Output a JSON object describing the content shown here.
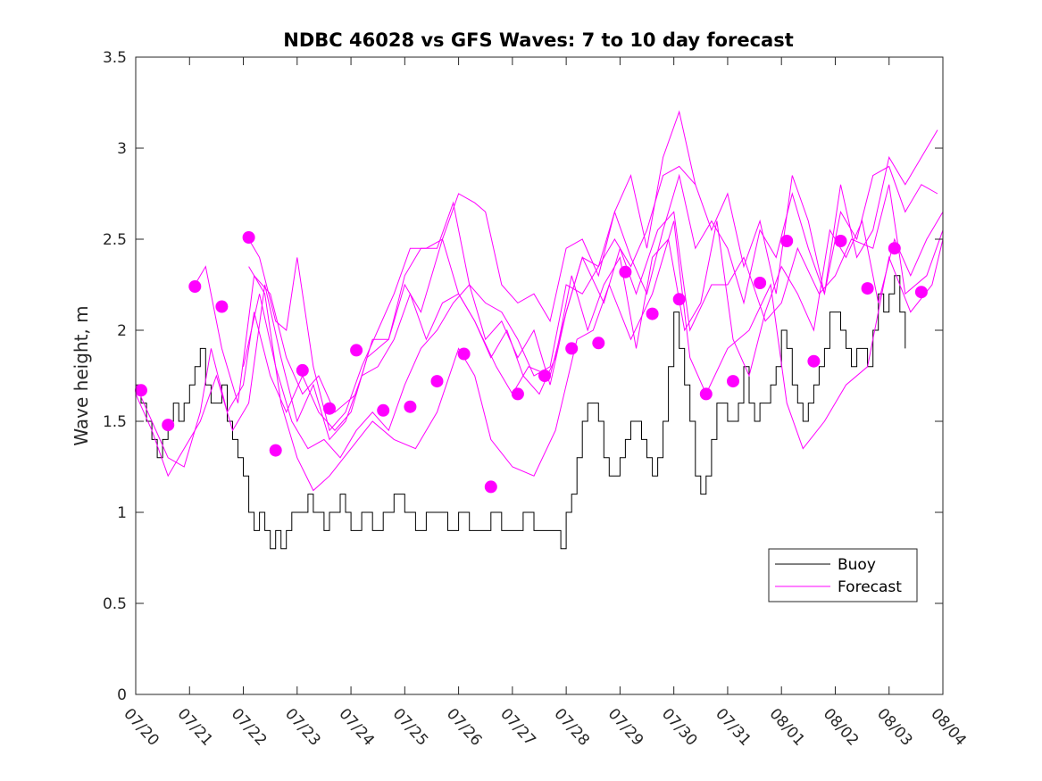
{
  "chart_data": {
    "type": "line",
    "title": "NDBC 46028 vs GFS Waves: 7 to 10 day forecast",
    "xlabel": "",
    "ylabel": "Wave height, m",
    "xlim": [
      0,
      15
    ],
    "ylim": [
      0,
      3.5
    ],
    "x_tick_values": [
      0,
      1,
      2,
      3,
      4,
      5,
      6,
      7,
      8,
      9,
      10,
      11,
      12,
      13,
      14,
      15
    ],
    "x_tick_labels": [
      "07/20",
      "07/21",
      "07/22",
      "07/23",
      "07/24",
      "07/25",
      "07/26",
      "07/27",
      "07/28",
      "07/29",
      "07/30",
      "07/31",
      "08/01",
      "08/02",
      "08/03",
      "08/04"
    ],
    "y_tick_values": [
      0,
      0.5,
      1,
      1.5,
      2,
      2.5,
      3,
      3.5
    ],
    "y_tick_labels": [
      "0",
      "0.5",
      "1",
      "1.5",
      "2",
      "2.5",
      "3",
      "3.5"
    ],
    "grid": false,
    "legend": {
      "position": "lower-right",
      "entries": [
        "Buoy",
        "Forecast"
      ]
    },
    "colors": {
      "buoy": "#000000",
      "forecast": "#ff00ff"
    },
    "series": [
      {
        "name": "Buoy",
        "x": [
          0.0,
          0.1,
          0.2,
          0.3,
          0.4,
          0.5,
          0.6,
          0.7,
          0.8,
          0.9,
          1.0,
          1.1,
          1.2,
          1.3,
          1.4,
          1.5,
          1.6,
          1.7,
          1.8,
          1.9,
          2.0,
          2.1,
          2.2,
          2.3,
          2.4,
          2.5,
          2.6,
          2.7,
          2.8,
          2.9,
          3.0,
          3.1,
          3.2,
          3.3,
          3.4,
          3.5,
          3.6,
          3.7,
          3.8,
          3.9,
          4.0,
          4.2,
          4.4,
          4.6,
          4.8,
          5.0,
          5.2,
          5.4,
          5.6,
          5.8,
          6.0,
          6.2,
          6.4,
          6.6,
          6.8,
          7.0,
          7.2,
          7.4,
          7.6,
          7.8,
          7.9,
          8.0,
          8.1,
          8.2,
          8.3,
          8.4,
          8.5,
          8.6,
          8.7,
          8.8,
          8.9,
          9.0,
          9.1,
          9.2,
          9.3,
          9.4,
          9.5,
          9.6,
          9.7,
          9.8,
          9.9,
          10.0,
          10.1,
          10.2,
          10.3,
          10.4,
          10.5,
          10.6,
          10.7,
          10.8,
          10.9,
          11.0,
          11.1,
          11.2,
          11.3,
          11.4,
          11.5,
          11.6,
          11.7,
          11.8,
          11.9,
          12.0,
          12.1,
          12.2,
          12.3,
          12.4,
          12.5,
          12.6,
          12.7,
          12.8,
          12.9,
          13.0,
          13.1,
          13.2,
          13.3,
          13.4,
          13.5,
          13.6,
          13.7,
          13.8,
          13.9,
          14.0,
          14.1,
          14.2,
          14.3
        ],
        "values": [
          1.7,
          1.6,
          1.5,
          1.4,
          1.3,
          1.4,
          1.5,
          1.6,
          1.5,
          1.6,
          1.7,
          1.8,
          1.9,
          1.7,
          1.6,
          1.6,
          1.7,
          1.5,
          1.4,
          1.3,
          1.2,
          1.0,
          0.9,
          1.0,
          0.9,
          0.8,
          0.9,
          0.8,
          0.9,
          1.0,
          1.0,
          1.0,
          1.1,
          1.0,
          1.0,
          0.9,
          1.0,
          1.0,
          1.1,
          1.0,
          0.9,
          1.0,
          0.9,
          1.0,
          1.1,
          1.0,
          0.9,
          1.0,
          1.0,
          0.9,
          1.0,
          0.9,
          0.9,
          1.0,
          0.9,
          0.9,
          1.0,
          0.9,
          0.9,
          0.9,
          0.8,
          1.0,
          1.1,
          1.3,
          1.5,
          1.6,
          1.6,
          1.5,
          1.3,
          1.2,
          1.2,
          1.3,
          1.4,
          1.5,
          1.5,
          1.4,
          1.3,
          1.2,
          1.3,
          1.5,
          1.8,
          2.1,
          1.9,
          1.7,
          1.5,
          1.2,
          1.1,
          1.2,
          1.4,
          1.6,
          1.6,
          1.5,
          1.5,
          1.6,
          1.8,
          1.6,
          1.5,
          1.6,
          1.6,
          1.7,
          1.8,
          2.0,
          1.9,
          1.7,
          1.6,
          1.5,
          1.6,
          1.7,
          1.8,
          1.9,
          2.1,
          2.1,
          2.0,
          1.9,
          1.8,
          1.9,
          1.9,
          1.8,
          2.0,
          2.2,
          2.1,
          2.2,
          2.3,
          2.1,
          1.9
        ]
      },
      {
        "name": "Forecast",
        "x": [
          2.1,
          2.4,
          2.7,
          3.0,
          3.3,
          3.6,
          4.0,
          4.4,
          4.8,
          5.2,
          5.6,
          6.0,
          6.3,
          6.6,
          7.0,
          7.4,
          7.8,
          8.2,
          8.5,
          8.8,
          9.2,
          9.6,
          10.0,
          10.3,
          10.6,
          11.0,
          11.4,
          11.8,
          12.1,
          12.4,
          12.8,
          13.2,
          13.6,
          14.0,
          14.4,
          14.8,
          15.0
        ],
        "values": [
          2.35,
          2.2,
          1.6,
          1.3,
          1.12,
          1.2,
          1.35,
          1.5,
          1.4,
          1.35,
          1.55,
          1.9,
          1.75,
          1.4,
          1.25,
          1.2,
          1.45,
          1.95,
          2.0,
          2.25,
          1.95,
          2.2,
          2.6,
          1.85,
          1.65,
          1.9,
          2.0,
          2.25,
          1.6,
          1.35,
          1.5,
          1.7,
          1.8,
          2.4,
          2.1,
          2.25,
          2.5
        ]
      },
      {
        "name": "Forecast",
        "x": [
          0.0,
          0.3,
          0.6,
          0.9,
          1.2,
          1.4,
          1.7,
          2.0,
          2.2,
          2.5,
          2.8,
          3.1,
          3.4,
          3.7,
          4.0,
          4.3,
          4.7,
          5.0,
          5.3,
          5.7,
          6.0,
          6.3,
          6.7,
          7.0,
          7.3,
          7.7,
          8.0,
          8.3,
          8.7,
          9.0,
          9.3,
          9.7,
          10.0,
          10.3,
          10.7,
          11.0,
          11.3,
          11.7,
          12.0,
          12.3,
          12.7,
          13.0,
          13.3,
          13.7,
          14.0,
          14.3,
          14.7,
          15.0
        ],
        "values": [
          1.7,
          1.5,
          1.3,
          1.25,
          1.55,
          1.9,
          1.55,
          1.7,
          2.1,
          1.75,
          1.55,
          1.75,
          1.55,
          1.45,
          1.55,
          1.85,
          1.95,
          2.25,
          2.1,
          2.5,
          2.2,
          2.05,
          1.8,
          1.65,
          1.8,
          1.75,
          2.1,
          2.4,
          2.15,
          2.45,
          2.2,
          2.55,
          2.65,
          2.0,
          2.25,
          2.25,
          2.4,
          2.05,
          2.15,
          2.45,
          2.2,
          2.3,
          2.5,
          2.45,
          2.8,
          2.2,
          2.3,
          2.55
        ]
      },
      {
        "name": "Forecast",
        "x": [
          0.0,
          0.3,
          0.6,
          0.9,
          1.2,
          1.5,
          1.8,
          2.1,
          2.4,
          2.7,
          3.0,
          3.3,
          3.6,
          3.9,
          4.2,
          4.5,
          4.8,
          5.1,
          5.4,
          5.7,
          6.0,
          6.3,
          6.6,
          6.9,
          7.2,
          7.5,
          7.8,
          8.1,
          8.4,
          8.7,
          9.0,
          9.3,
          9.6,
          9.9,
          10.2,
          10.5,
          10.8,
          11.1,
          11.4,
          11.7,
          12.0,
          12.3,
          12.6,
          12.9,
          13.2,
          13.5,
          13.8,
          14.1,
          14.4,
          14.7,
          15.0
        ],
        "values": [
          1.65,
          1.45,
          1.2,
          1.35,
          1.5,
          1.75,
          1.45,
          1.6,
          2.25,
          1.85,
          1.5,
          1.7,
          1.4,
          1.5,
          1.75,
          1.8,
          1.95,
          2.2,
          1.95,
          2.15,
          2.2,
          2.05,
          1.85,
          2.0,
          1.75,
          1.65,
          1.85,
          2.3,
          2.0,
          2.25,
          2.4,
          1.9,
          2.4,
          2.5,
          2.0,
          2.15,
          2.6,
          1.95,
          1.75,
          2.1,
          2.35,
          2.2,
          2.0,
          2.55,
          2.4,
          2.6,
          2.15,
          2.5,
          2.3,
          2.5,
          2.65
        ]
      },
      {
        "name": "Forecast",
        "x": [
          1.1,
          1.3,
          1.6,
          1.9,
          2.2,
          2.5,
          2.8,
          3.1,
          3.4,
          3.7,
          4.1,
          4.4,
          4.7,
          5.0,
          5.3,
          5.6,
          5.9,
          6.2,
          6.5,
          6.8,
          7.1,
          7.4,
          7.7,
          8.0,
          8.3,
          8.6,
          8.9,
          9.2,
          9.5,
          9.8,
          10.1,
          10.4,
          10.7,
          11.0,
          11.3,
          11.6,
          11.9,
          12.2,
          12.5,
          12.8,
          13.1,
          13.4,
          13.7,
          14.0,
          14.3,
          14.6,
          14.9
        ],
        "values": [
          2.25,
          2.35,
          1.9,
          1.6,
          2.3,
          2.2,
          1.85,
          1.65,
          1.75,
          1.55,
          1.65,
          1.95,
          1.95,
          2.3,
          2.45,
          2.45,
          2.7,
          2.25,
          2.15,
          2.1,
          1.95,
          1.75,
          1.8,
          2.25,
          2.2,
          2.35,
          2.65,
          2.4,
          2.2,
          2.55,
          2.85,
          2.45,
          2.6,
          2.45,
          2.15,
          2.55,
          2.4,
          2.75,
          2.45,
          2.2,
          2.65,
          2.5,
          2.85,
          2.9,
          2.65,
          2.8,
          2.75
        ]
      },
      {
        "name": "Forecast",
        "x": [
          2.1,
          2.3,
          2.6,
          2.8,
          3.0,
          3.3,
          3.6,
          3.9,
          4.2,
          4.5,
          4.8,
          5.1,
          5.4,
          5.7,
          6.0,
          6.3,
          6.5,
          6.8,
          7.1,
          7.4,
          7.7,
          8.0,
          8.3,
          8.6,
          8.9,
          9.2,
          9.5,
          9.8,
          10.1,
          10.4,
          10.7,
          11.0,
          11.3,
          11.6,
          11.9,
          12.2,
          12.5,
          12.8,
          13.1,
          13.4,
          13.7,
          14.0,
          14.3,
          14.6,
          14.9
        ],
        "values": [
          2.5,
          2.4,
          2.05,
          2.0,
          2.4,
          1.8,
          1.45,
          1.55,
          1.8,
          2.0,
          2.2,
          2.45,
          2.45,
          2.5,
          2.75,
          2.7,
          2.65,
          2.25,
          2.15,
          2.2,
          2.05,
          2.45,
          2.5,
          2.3,
          2.65,
          2.85,
          2.45,
          2.95,
          3.2,
          2.8,
          2.55,
          2.75,
          2.35,
          2.6,
          2.2,
          2.85,
          2.6,
          2.2,
          2.8,
          2.4,
          2.55,
          2.95,
          2.8,
          2.95,
          3.1
        ]
      },
      {
        "name": "Forecast",
        "x": [
          2.0,
          2.3,
          2.6,
          2.9,
          3.2,
          3.5,
          3.8,
          4.1,
          4.4,
          4.7,
          5.0,
          5.3,
          5.6,
          5.9,
          6.2,
          6.5,
          6.8,
          7.1,
          7.4,
          7.7,
          8.0,
          8.3,
          8.6,
          8.9,
          9.2,
          9.5,
          9.8,
          10.1,
          10.4
        ],
        "values": [
          1.8,
          2.2,
          1.8,
          1.5,
          1.35,
          1.4,
          1.3,
          1.45,
          1.55,
          1.45,
          1.7,
          1.9,
          2.0,
          2.15,
          2.25,
          1.95,
          2.05,
          1.85,
          2.0,
          1.7,
          2.1,
          2.4,
          2.35,
          2.5,
          2.35,
          2.55,
          2.85,
          2.9,
          2.8
        ]
      },
      {
        "name": "Forecast markers",
        "x": [
          0.1,
          0.6,
          1.1,
          1.6,
          2.1,
          2.6,
          3.1,
          3.6,
          4.1,
          4.6,
          5.1,
          5.6,
          6.1,
          6.6,
          7.1,
          7.6,
          8.1,
          8.6,
          9.1,
          9.6,
          10.1,
          10.6,
          11.1,
          11.6,
          12.1,
          12.6,
          13.1,
          13.6,
          14.1,
          14.6
        ],
        "values": [
          1.67,
          1.48,
          2.24,
          2.13,
          2.51,
          1.34,
          1.78,
          1.57,
          1.89,
          1.56,
          1.58,
          1.72,
          1.87,
          1.14,
          1.65,
          1.75,
          1.9,
          1.93,
          2.32,
          2.09,
          2.17,
          1.65,
          1.72,
          2.26,
          2.49,
          1.83,
          2.49,
          2.23,
          2.45,
          2.21
        ]
      }
    ]
  }
}
